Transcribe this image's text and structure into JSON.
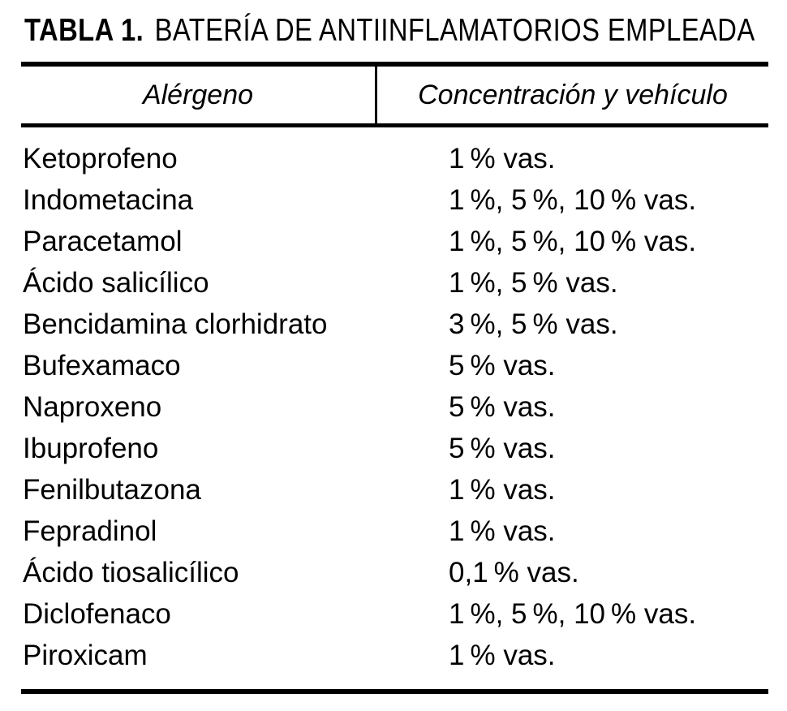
{
  "table": {
    "title": {
      "label": "TABLA 1.",
      "text": "BATERÍA DE ANTIINFLAMATORIOS EMPLEADA"
    },
    "header": {
      "col1": "Alérgeno",
      "col2": "Concentración y vehículo"
    },
    "rows": [
      {
        "allergen": "Ketoprofeno",
        "concentration": "1 % vas."
      },
      {
        "allergen": "Indometacina",
        "concentration": "1 %, 5 %, 10 % vas."
      },
      {
        "allergen": "Paracetamol",
        "concentration": "1 %, 5 %, 10 % vas."
      },
      {
        "allergen": "Ácido salicílico",
        "concentration": "1 %, 5 % vas."
      },
      {
        "allergen": "Bencidamina clorhidrato",
        "concentration": "3 %, 5 % vas."
      },
      {
        "allergen": "Bufexamaco",
        "concentration": "5 % vas."
      },
      {
        "allergen": "Naproxeno",
        "concentration": "5 % vas."
      },
      {
        "allergen": "Ibuprofeno",
        "concentration": "5 % vas."
      },
      {
        "allergen": "Fenilbutazona",
        "concentration": "1 % vas."
      },
      {
        "allergen": "Fepradinol",
        "concentration": "1 % vas."
      },
      {
        "allergen": "Ácido tiosalicílico",
        "concentration": "0,1 % vas."
      },
      {
        "allergen": "Diclofenaco",
        "concentration": "1 %, 5 %, 10 % vas."
      },
      {
        "allergen": "Piroxicam",
        "concentration": "1 % vas."
      }
    ],
    "colors": {
      "text": "#000000",
      "rule": "#000000",
      "background": "#ffffff"
    }
  }
}
